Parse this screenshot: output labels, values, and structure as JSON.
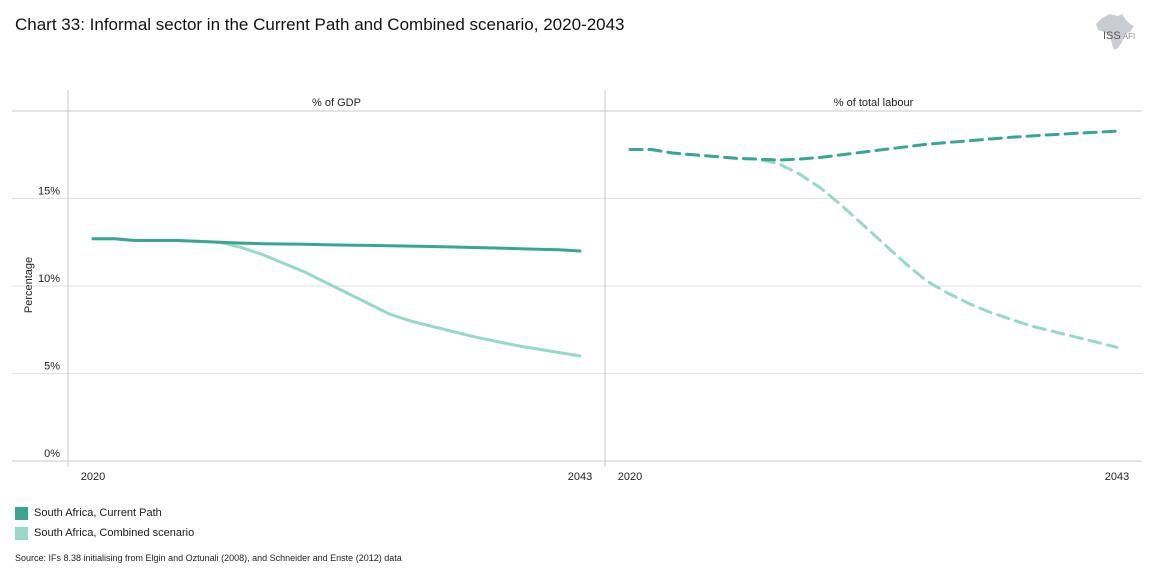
{
  "title": "Chart 33: Informal sector in the Current Path and Combined scenario, 2020-2043",
  "logo": {
    "main": "ISS",
    "sub": "AFI",
    "icon": "africa-map-icon"
  },
  "source": "Source: IFs 8.38 initialising from Elgin and Oztunali (2008), and Schneider and Enste (2012) data",
  "colors": {
    "current_path": "#3aa593",
    "combined": "#98d8c9",
    "grid": "#e2e2e2",
    "axis": "#c8c8c8"
  },
  "legend": [
    {
      "label": "South Africa, Current Path",
      "color": "#3aa593"
    },
    {
      "label": "South Africa, Combined scenario",
      "color": "#98d8c9"
    }
  ],
  "chart_data": {
    "type": "line",
    "ylabel": "Percentage",
    "ylim": [
      0,
      20
    ],
    "y_ticks": [
      0,
      5,
      10,
      15
    ],
    "y_tick_labels": [
      "0%",
      "5%",
      "10%",
      "15%"
    ],
    "x": [
      2020,
      2021,
      2022,
      2023,
      2024,
      2025,
      2026,
      2027,
      2028,
      2029,
      2030,
      2031,
      2032,
      2033,
      2034,
      2035,
      2036,
      2037,
      2038,
      2039,
      2040,
      2041,
      2042,
      2043
    ],
    "x_tick_labels": [
      "2020",
      "2043"
    ],
    "panels": [
      {
        "title": "% of GDP",
        "dashed": false,
        "series": [
          {
            "name": "South Africa, Current Path",
            "values": [
              12.7,
              12.7,
              12.6,
              12.6,
              12.6,
              12.55,
              12.5,
              12.45,
              12.42,
              12.4,
              12.38,
              12.36,
              12.34,
              12.32,
              12.3,
              12.28,
              12.26,
              12.23,
              12.2,
              12.17,
              12.14,
              12.1,
              12.07,
              12.0
            ]
          },
          {
            "name": "South Africa, Combined scenario",
            "values": [
              12.7,
              12.7,
              12.6,
              12.6,
              12.6,
              12.55,
              12.5,
              12.2,
              11.8,
              11.3,
              10.8,
              10.2,
              9.6,
              9.0,
              8.4,
              8.0,
              7.7,
              7.4,
              7.1,
              6.85,
              6.6,
              6.4,
              6.2,
              6.0
            ]
          }
        ]
      },
      {
        "title": "% of total labour",
        "dashed": true,
        "series": [
          {
            "name": "South Africa, Current Path",
            "values": [
              17.8,
              17.8,
              17.6,
              17.5,
              17.4,
              17.3,
              17.25,
              17.2,
              17.25,
              17.35,
              17.5,
              17.65,
              17.8,
              17.95,
              18.1,
              18.2,
              18.3,
              18.4,
              18.5,
              18.58,
              18.65,
              18.72,
              18.78,
              18.85
            ]
          },
          {
            "name": "South Africa, Combined scenario",
            "values": [
              17.8,
              17.8,
              17.6,
              17.5,
              17.4,
              17.3,
              17.25,
              17.0,
              16.4,
              15.6,
              14.6,
              13.5,
              12.4,
              11.3,
              10.3,
              9.6,
              9.0,
              8.5,
              8.1,
              7.7,
              7.4,
              7.1,
              6.8,
              6.5
            ]
          }
        ]
      }
    ]
  }
}
